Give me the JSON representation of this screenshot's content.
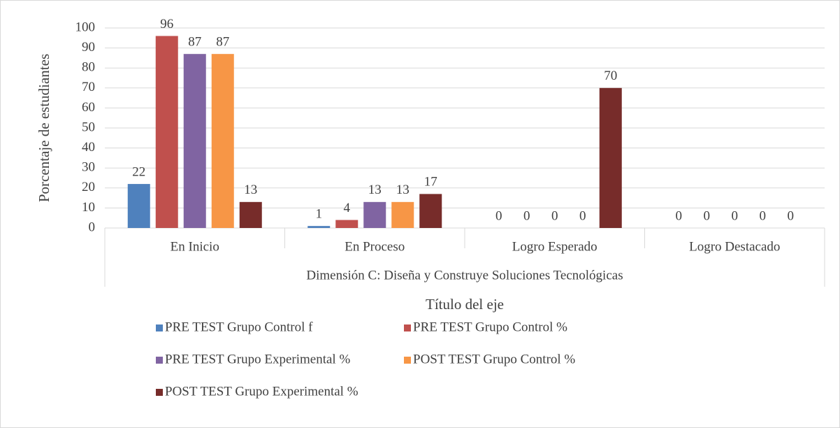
{
  "chart_data": {
    "type": "bar",
    "y_label": "Porcentaje de estudiantes",
    "group_label": "Dimensión C: Diseña y Construye Soluciones Tecnológicas",
    "x_label": "Título del eje",
    "categories": [
      "En Inicio",
      "En Proceso",
      "Logro Esperado",
      "Logro Destacado"
    ],
    "series": [
      {
        "name": "PRE TEST Grupo Control f",
        "color": "#4f81bd",
        "values": [
          22,
          1,
          0,
          0
        ]
      },
      {
        "name": "PRE TEST Grupo Control %",
        "color": "#c0504d",
        "values": [
          96,
          4,
          0,
          0
        ]
      },
      {
        "name": "PRE TEST Grupo Experimental %",
        "color": "#8064a2",
        "values": [
          87,
          13,
          0,
          0
        ]
      },
      {
        "name": "POST TEST Grupo Control %",
        "color": "#f79646",
        "values": [
          87,
          13,
          0,
          0
        ]
      },
      {
        "name": "POST TEST Grupo Experimental %",
        "color": "#772c2a",
        "values": [
          13,
          17,
          70,
          0
        ]
      }
    ],
    "ylim": [
      0,
      100
    ],
    "yticks": [
      0,
      10,
      20,
      30,
      40,
      50,
      60,
      70,
      80,
      90,
      100
    ],
    "grid": true,
    "legend": "bottom"
  }
}
